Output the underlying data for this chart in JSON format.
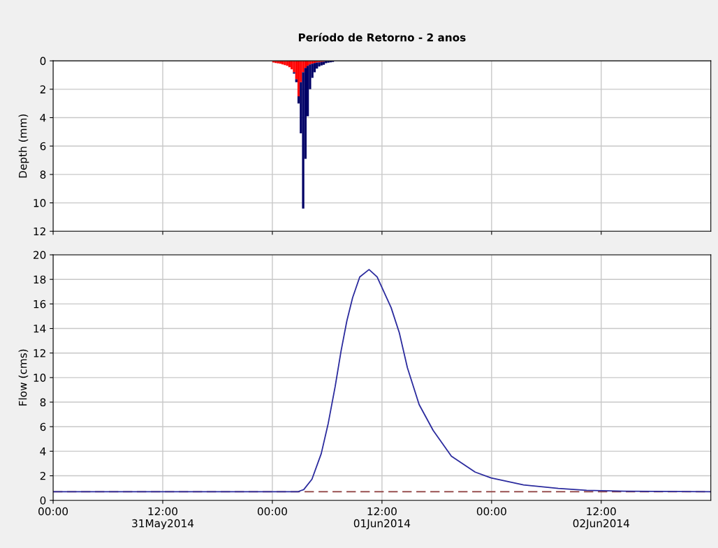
{
  "chart_data": [
    {
      "type": "bar",
      "title": "Período de Retorno - 2 anos",
      "ylabel": "Depth (mm)",
      "stacked": true,
      "grid": true,
      "tick_labels": "y",
      "x": [
        "2014-06-01T00:00",
        "2014-06-01T00:15",
        "2014-06-01T00:30",
        "2014-06-01T00:45",
        "2014-06-01T01:00",
        "2014-06-01T01:15",
        "2014-06-01T01:30",
        "2014-06-01T01:45",
        "2014-06-01T02:00",
        "2014-06-01T02:15",
        "2014-06-01T02:30",
        "2014-06-01T02:45",
        "2014-06-01T03:00",
        "2014-06-01T03:15",
        "2014-06-01T03:30",
        "2014-06-01T03:45",
        "2014-06-01T04:00",
        "2014-06-01T04:15",
        "2014-06-01T04:30",
        "2014-06-01T04:45",
        "2014-06-01T05:00",
        "2014-06-01T05:15",
        "2014-06-01T05:30",
        "2014-06-01T05:45",
        "2014-06-01T06:00",
        "2014-06-01T06:15",
        "2014-06-01T06:30"
      ],
      "series": [
        {
          "color": "#ff0000",
          "values": [
            0.12,
            0.15,
            0.18,
            0.2,
            0.25,
            0.3,
            0.35,
            0.45,
            0.6,
            0.8,
            1.3,
            2.5,
            1.5,
            0.8,
            0.5,
            0.35,
            0.25,
            0.2,
            0.15,
            0.12,
            0.1,
            0.08,
            0.07,
            null,
            null,
            null,
            null
          ]
        },
        {
          "color": "#000066",
          "values": [
            0,
            0,
            0,
            0,
            0,
            0,
            0,
            0,
            0,
            0.1,
            0.2,
            0.5,
            3.6,
            9.6,
            6.4,
            3.55,
            1.75,
            1.0,
            0.65,
            0.43,
            0.3,
            0.24,
            0.2,
            0.16,
            0.13,
            0.11,
            0.08
          ]
        }
      ],
      "xlim": [
        "2014-05-31T00:00",
        "2014-06-03T00:00"
      ],
      "xticks": [
        "2014-05-31T00:00",
        "2014-05-31T12:00",
        "2014-06-01T00:00",
        "2014-06-01T12:00",
        "2014-06-02T00:00",
        "2014-06-02T12:00"
      ],
      "ylim": [
        12,
        0
      ],
      "yticks": [
        0,
        2,
        4,
        6,
        8,
        10,
        12
      ]
    },
    {
      "type": "line",
      "ylabel": "Flow (cms)",
      "grid": true,
      "x": [
        "2014-05-31T00:00",
        "2014-06-01T02:50",
        "2014-06-01T03:04",
        "2014-06-01T03:26",
        "2014-06-01T04:20",
        "2014-06-01T05:21",
        "2014-06-01T06:07",
        "2014-06-01T06:53",
        "2014-06-01T07:31",
        "2014-06-01T08:09",
        "2014-06-01T08:47",
        "2014-06-01T09:34",
        "2014-06-01T10:35",
        "2014-06-01T11:28",
        "2014-06-01T13:00",
        "2014-06-01T13:54",
        "2014-06-01T14:47",
        "2014-06-01T16:04",
        "2014-06-01T17:36",
        "2014-06-01T19:36",
        "2014-06-01T22:12",
        "2014-06-01T23:57",
        "2014-06-02T03:30",
        "2014-06-02T07:18",
        "2014-06-02T10:24",
        "2014-06-02T14:30",
        "2014-06-03T00:00"
      ],
      "series": [
        {
          "color": "#2b2b9e",
          "values": [
            0.7,
            0.7,
            0.78,
            0.87,
            1.72,
            3.8,
            6.27,
            9.3,
            12.15,
            14.6,
            16.5,
            18.2,
            18.8,
            18.2,
            15.7,
            13.65,
            10.8,
            7.8,
            5.7,
            3.6,
            2.3,
            1.82,
            1.25,
            0.97,
            0.81,
            0.74,
            0.7
          ]
        }
      ],
      "ref_lines": [
        {
          "axis": "y",
          "value": 0.7,
          "color": "#8b3a3a",
          "line_style": "dashed"
        }
      ],
      "xlim": [
        "2014-05-31T00:00",
        "2014-06-03T00:00"
      ],
      "xticks": [
        {
          "value": "2014-05-31T00:00",
          "label": "00:00"
        },
        {
          "value": "2014-05-31T12:00",
          "label": "12:00\n31May2014"
        },
        {
          "value": "2014-06-01T00:00",
          "label": "00:00"
        },
        {
          "value": "2014-06-01T12:00",
          "label": "12:00\n01Jun2014"
        },
        {
          "value": "2014-06-02T00:00",
          "label": "00:00"
        },
        {
          "value": "2014-06-02T12:00",
          "label": "12:00\n02Jun2014"
        }
      ],
      "ylim": [
        0,
        20
      ],
      "yticks": [
        0,
        2,
        4,
        6,
        8,
        10,
        12,
        14,
        16,
        18,
        20
      ]
    }
  ]
}
